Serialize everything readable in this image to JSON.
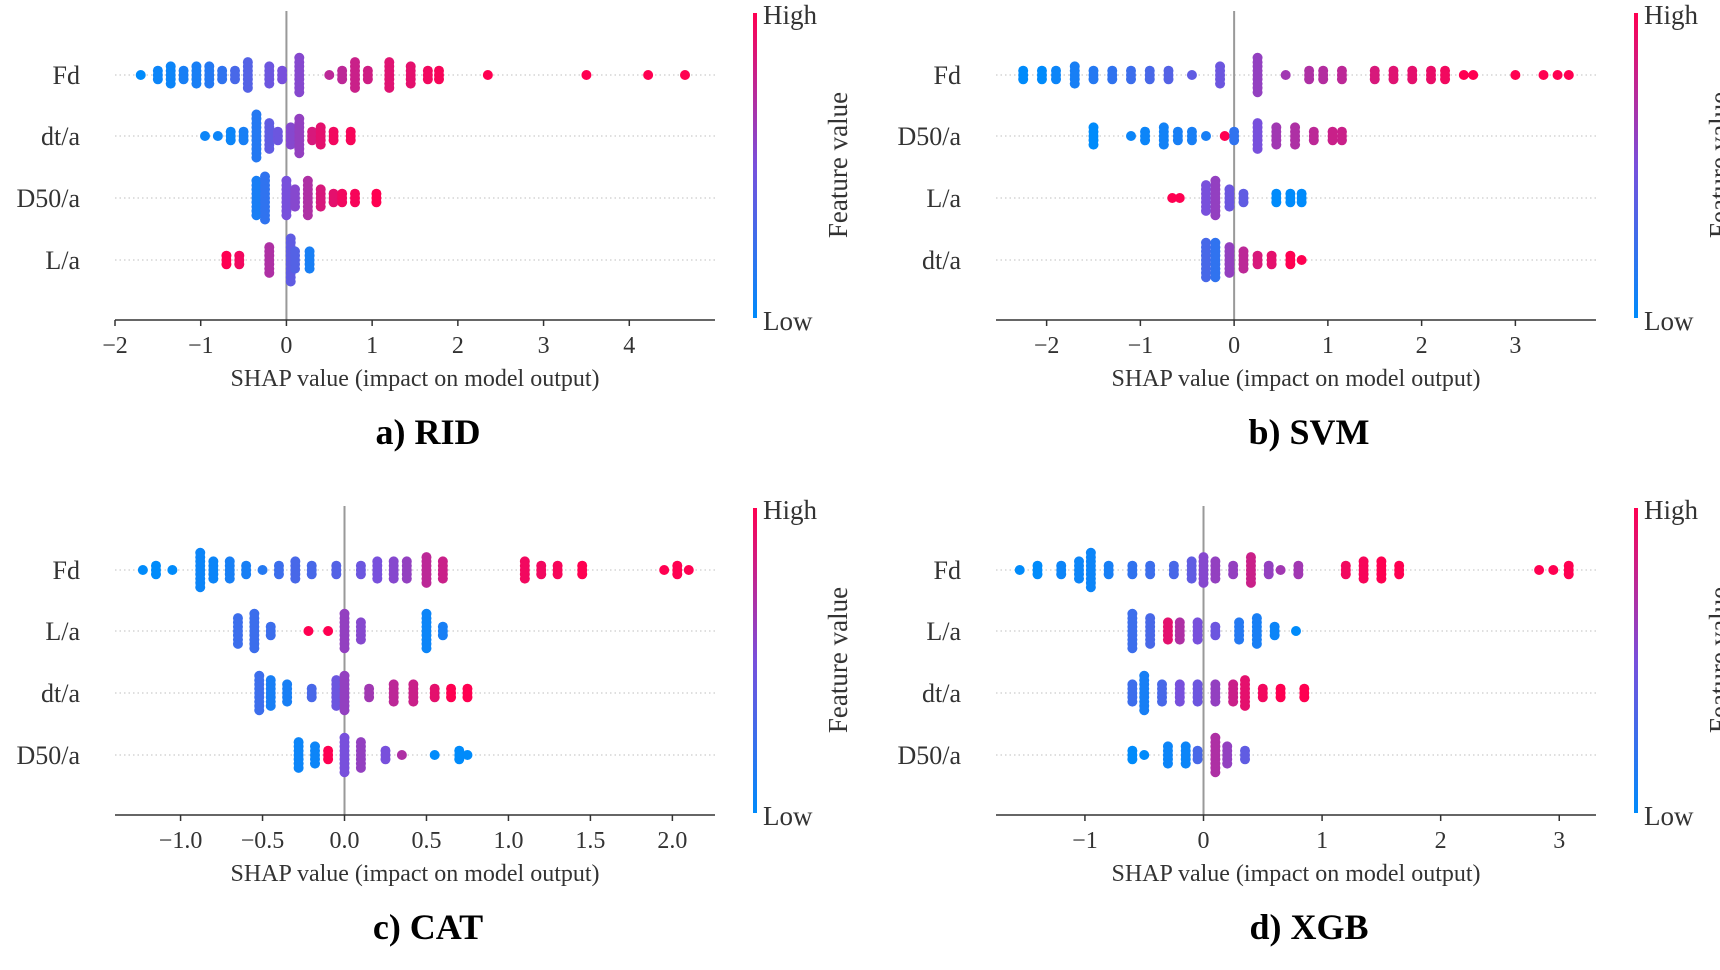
{
  "chart_data": [
    {
      "type": "scatter",
      "title": "a) RID",
      "xlabel": "SHAP value (impact on model output)",
      "xlim": [
        -2,
        5
      ],
      "ticks": [
        -2,
        -1,
        0,
        1,
        2,
        3,
        4
      ],
      "tick_labels": [
        "−2",
        "−1",
        "0",
        "1",
        "2",
        "3",
        "4"
      ],
      "features": [
        "Fd",
        "dt/a",
        "D50/a",
        "L/a"
      ],
      "colorbar": {
        "label": "Feature value",
        "high": "High",
        "low": "Low"
      },
      "note_clusters": "each point group: [shap value, stacked count, feature value 0=low..1=high]",
      "clusters": [
        [
          [
            -1.7,
            1,
            0
          ],
          [
            -1.5,
            3,
            0.05
          ],
          [
            -1.35,
            5,
            0.05
          ],
          [
            -1.2,
            3,
            0.1
          ],
          [
            -1.05,
            5,
            0.1
          ],
          [
            -0.9,
            5,
            0.15
          ],
          [
            -0.75,
            3,
            0.2
          ],
          [
            -0.6,
            3,
            0.3
          ],
          [
            -0.45,
            7,
            0.35
          ],
          [
            -0.2,
            5,
            0.45
          ],
          [
            -0.05,
            3,
            0.5
          ],
          [
            0.15,
            9,
            0.55
          ],
          [
            0.5,
            1,
            0.75
          ],
          [
            0.65,
            3,
            0.75
          ],
          [
            0.8,
            7,
            0.8
          ],
          [
            0.95,
            3,
            0.82
          ],
          [
            1.2,
            7,
            0.88
          ],
          [
            1.45,
            5,
            0.9
          ],
          [
            1.65,
            3,
            0.95
          ],
          [
            1.78,
            3,
            0.97
          ],
          [
            2.35,
            1,
            1
          ],
          [
            3.5,
            1,
            1
          ],
          [
            4.22,
            1,
            1
          ],
          [
            4.65,
            1,
            1
          ]
        ],
        [
          [
            -0.95,
            1,
            0.05
          ],
          [
            -0.8,
            1,
            0.05
          ],
          [
            -0.65,
            3,
            0.05
          ],
          [
            -0.5,
            3,
            0.1
          ],
          [
            -0.35,
            11,
            0.15
          ],
          [
            -0.2,
            7,
            0.4
          ],
          [
            -0.1,
            3,
            0.45
          ],
          [
            0.05,
            5,
            0.55
          ],
          [
            0.15,
            9,
            0.6
          ],
          [
            0.3,
            3,
            0.85
          ],
          [
            0.4,
            5,
            0.9
          ],
          [
            0.55,
            3,
            0.95
          ],
          [
            0.75,
            3,
            0.97
          ]
        ],
        [
          [
            -0.35,
            9,
            0.1
          ],
          [
            -0.25,
            11,
            0.2
          ],
          [
            0,
            9,
            0.5
          ],
          [
            0.1,
            5,
            0.55
          ],
          [
            0.25,
            9,
            0.7
          ],
          [
            0.4,
            5,
            0.85
          ],
          [
            0.55,
            3,
            0.9
          ],
          [
            0.65,
            3,
            0.95
          ],
          [
            0.8,
            3,
            0.97
          ],
          [
            1.05,
            3,
            1
          ]
        ],
        [
          [
            -0.7,
            3,
            1
          ],
          [
            -0.55,
            3,
            0.95
          ],
          [
            -0.2,
            7,
            0.7
          ],
          [
            0.05,
            11,
            0.4
          ],
          [
            0.1,
            5,
            0.35
          ],
          [
            0.27,
            5,
            0.1
          ]
        ]
      ]
    },
    {
      "type": "scatter",
      "title": "b) SVM",
      "xlabel": "SHAP value (impact on model output)",
      "xlim": [
        -2.54,
        3.86
      ],
      "ticks": [
        -2,
        -1,
        0,
        1,
        2,
        3
      ],
      "tick_labels": [
        "−2",
        "−1",
        "0",
        "1",
        "2",
        "3"
      ],
      "features": [
        "Fd",
        "D50/a",
        "L/a",
        "dt/a"
      ],
      "colorbar": {
        "label": "Feature value",
        "high": "High",
        "low": "Low"
      },
      "clusters": [
        [
          [
            -2.25,
            3,
            0
          ],
          [
            -2.05,
            3,
            0
          ],
          [
            -1.9,
            3,
            0.05
          ],
          [
            -1.7,
            5,
            0.1
          ],
          [
            -1.5,
            3,
            0.15
          ],
          [
            -1.3,
            3,
            0.2
          ],
          [
            -1.1,
            3,
            0.25
          ],
          [
            -0.9,
            3,
            0.3
          ],
          [
            -0.7,
            3,
            0.35
          ],
          [
            -0.45,
            1,
            0.4
          ],
          [
            -0.15,
            5,
            0.45
          ],
          [
            0.25,
            9,
            0.6
          ],
          [
            0.55,
            1,
            0.65
          ],
          [
            0.8,
            3,
            0.7
          ],
          [
            0.95,
            3,
            0.72
          ],
          [
            1.15,
            3,
            0.75
          ],
          [
            1.5,
            3,
            0.85
          ],
          [
            1.7,
            3,
            0.88
          ],
          [
            1.9,
            3,
            0.9
          ],
          [
            2.1,
            3,
            0.92
          ],
          [
            2.25,
            3,
            0.95
          ],
          [
            2.45,
            1,
            1
          ],
          [
            2.55,
            1,
            1
          ],
          [
            3.0,
            1,
            1
          ],
          [
            3.3,
            1,
            1
          ],
          [
            3.45,
            1,
            1
          ],
          [
            3.57,
            1,
            1
          ]
        ],
        [
          [
            -1.5,
            5,
            0
          ],
          [
            -1.1,
            1,
            0.05
          ],
          [
            -0.95,
            3,
            0.05
          ],
          [
            -0.75,
            5,
            0.08
          ],
          [
            -0.6,
            3,
            0.1
          ],
          [
            -0.45,
            3,
            0.1
          ],
          [
            -0.3,
            1,
            0.1
          ],
          [
            -0.1,
            1,
            1
          ],
          [
            0,
            3,
            0.2
          ],
          [
            0.25,
            7,
            0.5
          ],
          [
            0.45,
            5,
            0.65
          ],
          [
            0.65,
            5,
            0.7
          ],
          [
            0.85,
            3,
            0.75
          ],
          [
            1.05,
            3,
            0.8
          ],
          [
            1.15,
            3,
            0.8
          ]
        ],
        [
          [
            -0.66,
            1,
            1
          ],
          [
            -0.58,
            1,
            1
          ],
          [
            -0.3,
            7,
            0.5
          ],
          [
            -0.2,
            9,
            0.6
          ],
          [
            -0.05,
            5,
            0.45
          ],
          [
            0.1,
            3,
            0.4
          ],
          [
            0.45,
            3,
            0
          ],
          [
            0.6,
            3,
            0
          ],
          [
            0.72,
            3,
            0
          ]
        ],
        [
          [
            -0.3,
            9,
            0.3
          ],
          [
            -0.2,
            9,
            0.2
          ],
          [
            -0.05,
            7,
            0.6
          ],
          [
            0.1,
            5,
            0.75
          ],
          [
            0.25,
            3,
            0.85
          ],
          [
            0.4,
            3,
            0.9
          ],
          [
            0.6,
            3,
            1
          ],
          [
            0.72,
            1,
            1
          ]
        ]
      ]
    },
    {
      "type": "scatter",
      "title": "c) CAT",
      "xlabel": "SHAP value (impact on model output)",
      "xlim": [
        -1.4,
        2.26
      ],
      "ticks": [
        -1.0,
        -0.5,
        0.0,
        0.5,
        1.0,
        1.5,
        2.0
      ],
      "tick_labels": [
        "−1.0",
        "−0.5",
        "0.0",
        "0.5",
        "1.0",
        "1.5",
        "2.0"
      ],
      "features": [
        "Fd",
        "L/a",
        "dt/a",
        "D50/a"
      ],
      "colorbar": {
        "label": "Feature value",
        "high": "High",
        "low": "Low"
      },
      "clusters": [
        [
          [
            -1.23,
            1,
            0
          ],
          [
            -1.15,
            3,
            0
          ],
          [
            -1.05,
            1,
            0
          ],
          [
            -0.88,
            9,
            0.05
          ],
          [
            -0.8,
            5,
            0.05
          ],
          [
            -0.7,
            5,
            0.1
          ],
          [
            -0.6,
            3,
            0.1
          ],
          [
            -0.5,
            1,
            0.15
          ],
          [
            -0.4,
            3,
            0.25
          ],
          [
            -0.3,
            5,
            0.3
          ],
          [
            -0.2,
            3,
            0.3
          ],
          [
            -0.05,
            3,
            0.35
          ],
          [
            0.1,
            3,
            0.45
          ],
          [
            0.2,
            5,
            0.5
          ],
          [
            0.3,
            5,
            0.55
          ],
          [
            0.38,
            5,
            0.6
          ],
          [
            0.5,
            7,
            0.75
          ],
          [
            0.6,
            5,
            0.8
          ],
          [
            1.1,
            5,
            0.95
          ],
          [
            1.2,
            3,
            0.95
          ],
          [
            1.3,
            3,
            0.97
          ],
          [
            1.45,
            3,
            1
          ],
          [
            1.95,
            1,
            1
          ],
          [
            2.03,
            3,
            1
          ],
          [
            2.1,
            1,
            1
          ]
        ],
        [
          [
            -0.65,
            7,
            0.25
          ],
          [
            -0.55,
            9,
            0.25
          ],
          [
            -0.45,
            3,
            0.25
          ],
          [
            -0.22,
            1,
            1
          ],
          [
            -0.1,
            1,
            1
          ],
          [
            0,
            9,
            0.6
          ],
          [
            0.1,
            5,
            0.55
          ],
          [
            0.5,
            9,
            0.05
          ],
          [
            0.6,
            3,
            0.1
          ]
        ],
        [
          [
            -0.52,
            9,
            0.25
          ],
          [
            -0.45,
            7,
            0.1
          ],
          [
            -0.35,
            5,
            0.1
          ],
          [
            -0.2,
            3,
            0.3
          ],
          [
            -0.05,
            7,
            0.45
          ],
          [
            0.0,
            9,
            0.6
          ],
          [
            0.15,
            3,
            0.65
          ],
          [
            0.3,
            5,
            0.75
          ],
          [
            0.42,
            5,
            0.8
          ],
          [
            0.55,
            3,
            0.9
          ],
          [
            0.65,
            3,
            1
          ],
          [
            0.75,
            3,
            1
          ]
        ],
        [
          [
            -0.28,
            7,
            0.05
          ],
          [
            -0.18,
            5,
            0.05
          ],
          [
            -0.1,
            3,
            1
          ],
          [
            0,
            9,
            0.5
          ],
          [
            0.1,
            7,
            0.6
          ],
          [
            0.25,
            3,
            0.5
          ],
          [
            0.35,
            1,
            0.7
          ],
          [
            0.55,
            1,
            0
          ],
          [
            0.7,
            3,
            0
          ],
          [
            0.75,
            1,
            0
          ]
        ]
      ]
    },
    {
      "type": "scatter",
      "title": "d) XGB",
      "xlabel": "SHAP value (impact on model output)",
      "xlim": [
        -1.75,
        3.31
      ],
      "ticks": [
        -1,
        0,
        1,
        2,
        3
      ],
      "tick_labels": [
        "−1",
        "0",
        "1",
        "2",
        "3"
      ],
      "features": [
        "Fd",
        "L/a",
        "dt/a",
        "D50/a"
      ],
      "colorbar": {
        "label": "Feature value",
        "high": "High",
        "low": "Low"
      },
      "clusters": [
        [
          [
            -1.55,
            1,
            0
          ],
          [
            -1.4,
            3,
            0
          ],
          [
            -1.2,
            3,
            0.05
          ],
          [
            -1.05,
            5,
            0.05
          ],
          [
            -0.95,
            9,
            0.05
          ],
          [
            -0.8,
            3,
            0.1
          ],
          [
            -0.6,
            3,
            0.2
          ],
          [
            -0.45,
            3,
            0.25
          ],
          [
            -0.25,
            3,
            0.3
          ],
          [
            -0.1,
            5,
            0.4
          ],
          [
            0,
            7,
            0.55
          ],
          [
            0.1,
            5,
            0.6
          ],
          [
            0.25,
            3,
            0.6
          ],
          [
            0.4,
            7,
            0.8
          ],
          [
            0.55,
            3,
            0.6
          ],
          [
            0.65,
            1,
            0.65
          ],
          [
            0.8,
            3,
            0.65
          ],
          [
            1.2,
            3,
            0.95
          ],
          [
            1.35,
            5,
            0.97
          ],
          [
            1.5,
            5,
            1
          ],
          [
            1.65,
            3,
            1
          ],
          [
            2.83,
            1,
            1
          ],
          [
            2.95,
            1,
            1
          ],
          [
            3.08,
            3,
            1
          ]
        ],
        [
          [
            -0.6,
            9,
            0.25
          ],
          [
            -0.45,
            7,
            0.3
          ],
          [
            -0.3,
            5,
            0.9
          ],
          [
            -0.2,
            5,
            0.7
          ],
          [
            -0.05,
            5,
            0.5
          ],
          [
            0.1,
            3,
            0.45
          ],
          [
            0.3,
            5,
            0.15
          ],
          [
            0.45,
            7,
            0.1
          ],
          [
            0.6,
            3,
            0.05
          ],
          [
            0.78,
            1,
            0
          ]
        ],
        [
          [
            -0.6,
            5,
            0.25
          ],
          [
            -0.5,
            9,
            0.1
          ],
          [
            -0.35,
            5,
            0.3
          ],
          [
            -0.2,
            5,
            0.5
          ],
          [
            -0.05,
            5,
            0.45
          ],
          [
            0.1,
            5,
            0.6
          ],
          [
            0.25,
            5,
            0.8
          ],
          [
            0.35,
            7,
            0.9
          ],
          [
            0.5,
            3,
            0.95
          ],
          [
            0.65,
            3,
            1
          ],
          [
            0.85,
            3,
            1
          ]
        ],
        [
          [
            -0.6,
            3,
            0
          ],
          [
            -0.5,
            1,
            0
          ],
          [
            -0.3,
            5,
            0.05
          ],
          [
            -0.15,
            5,
            0.05
          ],
          [
            -0.05,
            3,
            0.3
          ],
          [
            0.1,
            9,
            0.7
          ],
          [
            0.2,
            5,
            0.6
          ],
          [
            0.35,
            3,
            0.4
          ]
        ]
      ]
    }
  ],
  "colors": {
    "low": "#008bfb",
    "mid": "#7850dc",
    "high": "#ff0051"
  }
}
